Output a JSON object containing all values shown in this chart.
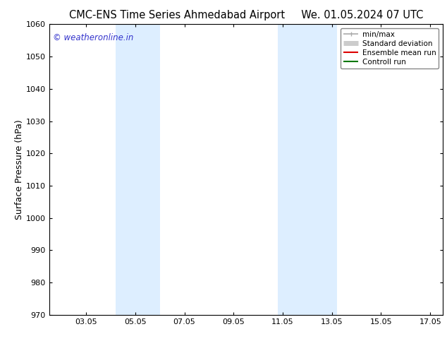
{
  "title": "CMC-ENS Time Series Ahmedabad Airport     We. 01.05.2024 07 UTC",
  "ylabel": "Surface Pressure (hPa)",
  "ylim": [
    970,
    1060
  ],
  "yticks": [
    970,
    980,
    990,
    1000,
    1010,
    1020,
    1030,
    1040,
    1050,
    1060
  ],
  "xlim_start": 1.5,
  "xlim_end": 17.5,
  "xtick_labels": [
    "03.05",
    "05.05",
    "07.05",
    "09.05",
    "11.05",
    "13.05",
    "15.05",
    "17.05"
  ],
  "xtick_positions": [
    3.0,
    5.0,
    7.0,
    9.0,
    11.0,
    13.0,
    15.0,
    17.0
  ],
  "shaded_bands": [
    {
      "x_start": 4.2,
      "x_end": 6.0,
      "color": "#ddeeff"
    },
    {
      "x_start": 10.8,
      "x_end": 13.2,
      "color": "#ddeeff"
    }
  ],
  "background_color": "#ffffff",
  "watermark_text": "© weatheronline.in",
  "watermark_color": "#3333cc",
  "legend_entries": [
    {
      "label": "min/max",
      "color": "#aaaaaa",
      "lw": 1.2
    },
    {
      "label": "Standard deviation",
      "color": "#cccccc",
      "lw": 5
    },
    {
      "label": "Ensemble mean run",
      "color": "#dd0000",
      "lw": 1.5
    },
    {
      "label": "Controll run",
      "color": "#007700",
      "lw": 1.5
    }
  ],
  "title_fontsize": 10.5,
  "label_fontsize": 9,
  "tick_fontsize": 8,
  "legend_fontsize": 7.5
}
